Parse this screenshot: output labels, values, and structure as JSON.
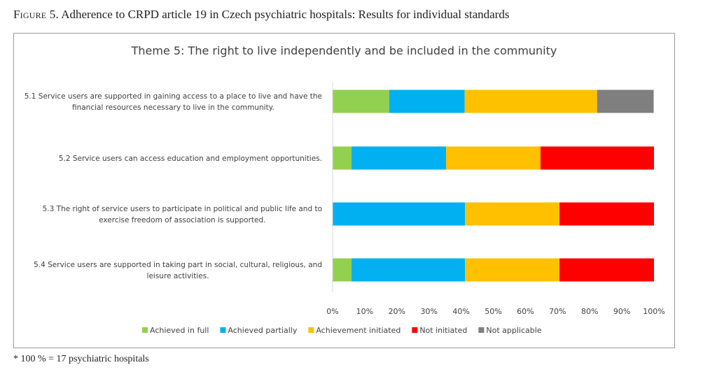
{
  "caption": {
    "label": "Figure 5.",
    "text": " Adherence to CRPD article 19 in Czech psychiatric hospitals: Results for individual standards"
  },
  "footnote": "* 100 % = 17 psychiatric hospitals",
  "chart_data": {
    "type": "bar",
    "orientation": "horizontal",
    "stacked": true,
    "title": "Theme 5: The right to live independently  and be included  in the community",
    "categories": [
      [
        "5.1 Service users are supported in gaining access to a place to live and have the",
        "financial resources necessary to live in the community."
      ],
      [
        "5.2 Service users can access education and employment opportunities."
      ],
      [
        "5.3 The right of service users to participate in political and public life and to",
        "exercise freedom of association is supported."
      ],
      [
        "5.4 Service users are supported in taking part in social, cultural, religious, and",
        "leisure activities."
      ]
    ],
    "series": [
      {
        "name": "Achieved in full",
        "color": "#92d050",
        "values": [
          17.6,
          5.9,
          0,
          5.9
        ]
      },
      {
        "name": "Achieved partially",
        "color": "#00b0f0",
        "values": [
          23.5,
          29.4,
          41.2,
          35.3
        ]
      },
      {
        "name": "Achievement initiated",
        "color": "#ffc000",
        "values": [
          41.2,
          29.4,
          29.4,
          29.4
        ]
      },
      {
        "name": "Not initiated",
        "color": "#ff0000",
        "values": [
          0,
          35.3,
          29.4,
          29.4
        ]
      },
      {
        "name": "Not applicable",
        "color": "#7f7f7f",
        "values": [
          17.6,
          0,
          0,
          0
        ]
      }
    ],
    "xlim": [
      0,
      100
    ],
    "xticks": [
      "0%",
      "10%",
      "20%",
      "30%",
      "40%",
      "50%",
      "60%",
      "70%",
      "80%",
      "90%",
      "100%"
    ],
    "grid": false,
    "legend_position": "bottom"
  }
}
